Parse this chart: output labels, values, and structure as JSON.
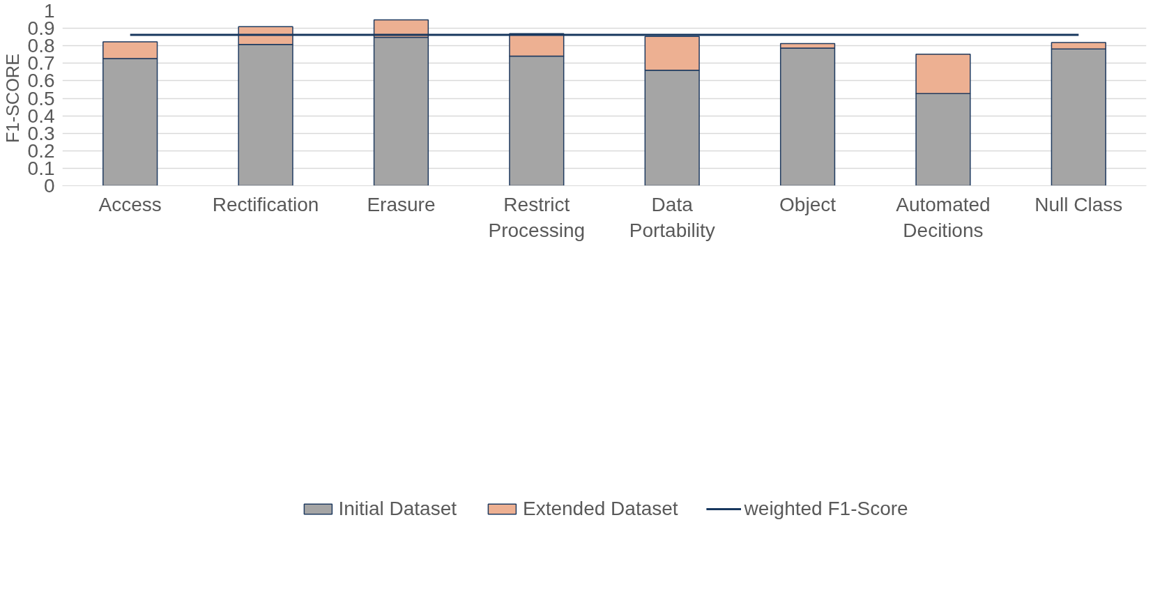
{
  "chart_data": {
    "type": "bar",
    "stacked": true,
    "ylabel": "F1-SCORE",
    "categories": [
      "Access",
      "Rectification",
      "Erasure",
      "Restrict Processing",
      "Data Portability",
      "Object",
      "Automated Decitions",
      "Null Class"
    ],
    "series": [
      {
        "name": "Initial Dataset",
        "color": "#a5a5a5",
        "values": [
          0.727,
          0.808,
          0.849,
          0.741,
          0.66,
          0.787,
          0.527,
          0.782
        ]
      },
      {
        "name": "Extended Dataset",
        "color": "#edb092",
        "values": [
          0.096,
          0.101,
          0.099,
          0.129,
          0.194,
          0.026,
          0.225,
          0.037
        ]
      },
      {
        "name": "weighted F1-Score",
        "type": "line",
        "color": "#17375e",
        "values": [
          0.863,
          0.863,
          0.863,
          0.863,
          0.863,
          0.863,
          0.863,
          0.863
        ]
      }
    ],
    "ylim": [
      0,
      1
    ],
    "yticks": [
      0,
      0.1,
      0.2,
      0.3,
      0.4,
      0.5,
      0.6,
      0.7,
      0.8,
      0.9,
      1
    ],
    "grid": "y",
    "legend": "bottom"
  }
}
